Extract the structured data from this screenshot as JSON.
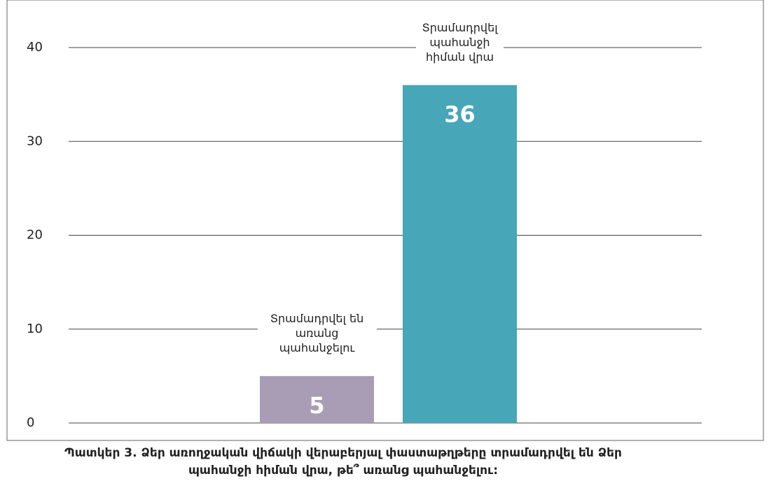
{
  "chart_data": {
    "type": "bar",
    "title": "Պատկեր 3. Ձեր առողջական վիճակի վերաբերյալ փաստաթղթերը տրամադրվել են Ձեր պահանջի հիման վրա, թե՞ առանց պահանջելու:",
    "categories": [
      "Տրամադրվել են առանց պահանջելու",
      "Տրամադրվել պահանջի հիման վրա"
    ],
    "values": [
      5,
      36
    ],
    "colors": [
      "#a99db5",
      "#47a6b8"
    ],
    "ylim": [
      0,
      40
    ],
    "yticks": [
      0,
      10,
      20,
      30,
      40
    ],
    "grid": true
  }
}
